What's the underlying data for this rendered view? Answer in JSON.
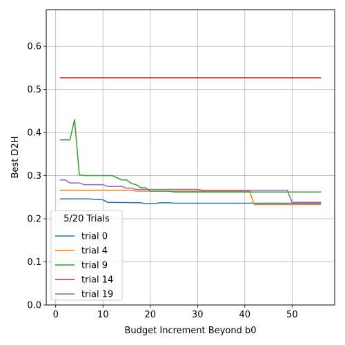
{
  "chart_data": {
    "type": "line",
    "xlabel": "Budget Increment Beyond b0",
    "ylabel": "Best D2H",
    "xlim": [
      -2,
      59
    ],
    "ylim": [
      0,
      0.685
    ],
    "xticks": [
      0,
      10,
      20,
      30,
      40,
      50
    ],
    "yticks": [
      0.0,
      0.1,
      0.2,
      0.3,
      0.4,
      0.5,
      0.6
    ],
    "grid": true,
    "legend": {
      "title": "5/20 Trials",
      "placement": "lower-left"
    },
    "series": [
      {
        "name": "trial 0",
        "color": "#1f77b4",
        "points": [
          [
            1,
            0.246
          ],
          [
            7,
            0.246
          ],
          [
            8,
            0.245
          ],
          [
            10,
            0.244
          ],
          [
            11,
            0.238
          ],
          [
            18,
            0.237
          ],
          [
            19,
            0.235
          ],
          [
            21,
            0.235
          ],
          [
            22,
            0.237
          ],
          [
            24,
            0.237
          ],
          [
            25,
            0.236
          ],
          [
            56,
            0.236
          ]
        ]
      },
      {
        "name": "trial 4",
        "color": "#ff7f0e",
        "points": [
          [
            1,
            0.266
          ],
          [
            16,
            0.266
          ],
          [
            17,
            0.264
          ],
          [
            41,
            0.264
          ],
          [
            42,
            0.233
          ],
          [
            56,
            0.233
          ]
        ]
      },
      {
        "name": "trial 9",
        "color": "#2ca02c",
        "points": [
          [
            1,
            0.383
          ],
          [
            3,
            0.383
          ],
          [
            4,
            0.43
          ],
          [
            5,
            0.302
          ],
          [
            6,
            0.3
          ],
          [
            12,
            0.3
          ],
          [
            14,
            0.29
          ],
          [
            15,
            0.29
          ],
          [
            16,
            0.282
          ],
          [
            17,
            0.279
          ],
          [
            18,
            0.272
          ],
          [
            19,
            0.272
          ],
          [
            20,
            0.264
          ],
          [
            24,
            0.264
          ],
          [
            25,
            0.262
          ],
          [
            56,
            0.262
          ]
        ]
      },
      {
        "name": "trial 14",
        "color": "#d62728",
        "points": [
          [
            1,
            0.527
          ],
          [
            56,
            0.527
          ]
        ]
      },
      {
        "name": "trial 19",
        "color": "#9467bd",
        "points": [
          [
            1,
            0.29
          ],
          [
            2,
            0.29
          ],
          [
            3,
            0.283
          ],
          [
            5,
            0.283
          ],
          [
            6,
            0.279
          ],
          [
            10,
            0.279
          ],
          [
            11,
            0.275
          ],
          [
            14,
            0.275
          ],
          [
            15,
            0.271
          ],
          [
            16,
            0.271
          ],
          [
            17,
            0.268
          ],
          [
            30,
            0.268
          ],
          [
            31,
            0.266
          ],
          [
            49,
            0.266
          ],
          [
            50,
            0.238
          ],
          [
            56,
            0.238
          ]
        ]
      }
    ]
  }
}
